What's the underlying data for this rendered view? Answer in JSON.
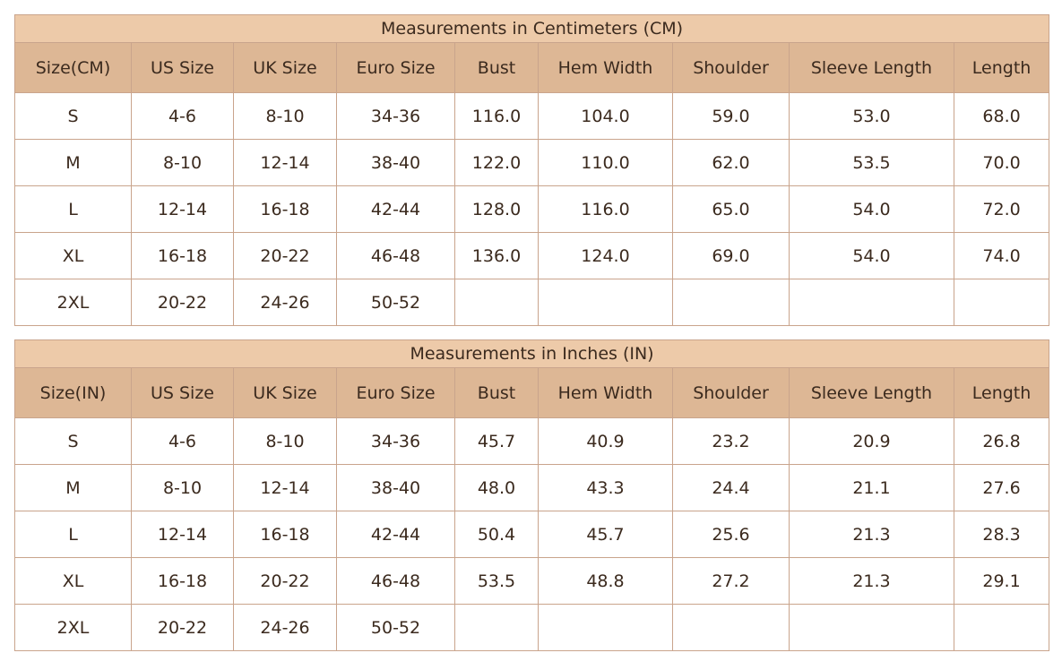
{
  "tables": [
    {
      "title": "Measurements in Centimeters (CM)",
      "headers": [
        "Size(CM)",
        "US Size",
        "UK Size",
        "Euro Size",
        "Bust",
        "Hem Width",
        "Shoulder",
        "Sleeve Length",
        "Length"
      ],
      "rows": [
        [
          "S",
          "4-6",
          "8-10",
          "34-36",
          "116.0",
          "104.0",
          "59.0",
          "53.0",
          "68.0"
        ],
        [
          "M",
          "8-10",
          "12-14",
          "38-40",
          "122.0",
          "110.0",
          "62.0",
          "53.5",
          "70.0"
        ],
        [
          "L",
          "12-14",
          "16-18",
          "42-44",
          "128.0",
          "116.0",
          "65.0",
          "54.0",
          "72.0"
        ],
        [
          "XL",
          "16-18",
          "20-22",
          "46-48",
          "136.0",
          "124.0",
          "69.0",
          "54.0",
          "74.0"
        ],
        [
          "2XL",
          "20-22",
          "24-26",
          "50-52"
        ]
      ]
    },
    {
      "title": "Measurements in Inches (IN)",
      "headers": [
        "Size(IN)",
        "US Size",
        "UK Size",
        "Euro Size",
        "Bust",
        "Hem Width",
        "Shoulder",
        "Sleeve Length",
        "Length"
      ],
      "rows": [
        [
          "S",
          "4-6",
          "8-10",
          "34-36",
          "45.7",
          "40.9",
          "23.2",
          "20.9",
          "26.8"
        ],
        [
          "M",
          "8-10",
          "12-14",
          "38-40",
          "48.0",
          "43.3",
          "24.4",
          "21.1",
          "27.6"
        ],
        [
          "L",
          "12-14",
          "16-18",
          "42-44",
          "50.4",
          "45.7",
          "25.6",
          "21.3",
          "28.3"
        ],
        [
          "XL",
          "16-18",
          "20-22",
          "46-48",
          "53.5",
          "48.8",
          "27.2",
          "21.3",
          "29.1"
        ],
        [
          "2XL",
          "20-22",
          "24-26",
          "50-52"
        ]
      ]
    }
  ]
}
